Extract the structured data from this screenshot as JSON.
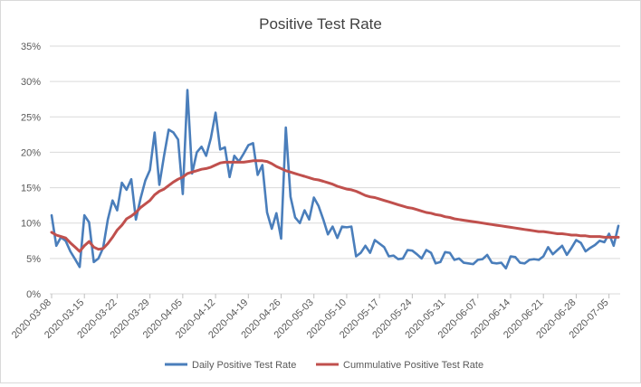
{
  "chart_data": {
    "type": "line",
    "title": "Positive Test Rate",
    "xlabel": "",
    "ylabel": "",
    "ylim": [
      0,
      0.35
    ],
    "y_ticks": [
      0,
      0.05,
      0.1,
      0.15,
      0.2,
      0.25,
      0.3,
      0.35
    ],
    "y_tick_labels": [
      "0%",
      "5%",
      "10%",
      "15%",
      "20%",
      "25%",
      "30%",
      "35%"
    ],
    "x_start": "2020-03-08",
    "x_end": "2020-07-06",
    "x_tick_labels": [
      "2020-03-08",
      "2020-03-15",
      "2020-03-22",
      "2020-03-29",
      "2020-04-05",
      "2020-04-12",
      "2020-04-19",
      "2020-04-26",
      "2020-05-03",
      "2020-05-10",
      "2020-05-17",
      "2020-05-24",
      "2020-05-31",
      "2020-06-07",
      "2020-06-14",
      "2020-06-21",
      "2020-06-28",
      "2020-07-05"
    ],
    "grid": true,
    "legend_position": "bottom",
    "series": [
      {
        "name": "Daily Positive Test Rate",
        "color": "#4a7ebb",
        "values": [
          0.111,
          0.068,
          0.08,
          0.075,
          0.06,
          0.049,
          0.038,
          0.111,
          0.101,
          0.045,
          0.05,
          0.065,
          0.105,
          0.132,
          0.118,
          0.157,
          0.147,
          0.162,
          0.105,
          0.135,
          0.16,
          0.175,
          0.228,
          0.154,
          0.195,
          0.232,
          0.228,
          0.218,
          0.141,
          0.288,
          0.17,
          0.2,
          0.208,
          0.195,
          0.22,
          0.256,
          0.204,
          0.207,
          0.165,
          0.195,
          0.187,
          0.198,
          0.21,
          0.213,
          0.168,
          0.182,
          0.115,
          0.092,
          0.114,
          0.078,
          0.235,
          0.137,
          0.108,
          0.1,
          0.118,
          0.105,
          0.136,
          0.124,
          0.105,
          0.084,
          0.095,
          0.079,
          0.095,
          0.094,
          0.095,
          0.053,
          0.058,
          0.068,
          0.058,
          0.076,
          0.071,
          0.066,
          0.053,
          0.054,
          0.049,
          0.05,
          0.062,
          0.061,
          0.056,
          0.05,
          0.062,
          0.058,
          0.043,
          0.045,
          0.059,
          0.058,
          0.048,
          0.05,
          0.044,
          0.043,
          0.042,
          0.048,
          0.049,
          0.055,
          0.044,
          0.043,
          0.044,
          0.036,
          0.053,
          0.052,
          0.044,
          0.043,
          0.048,
          0.049,
          0.048,
          0.053,
          0.066,
          0.056,
          0.062,
          0.068,
          0.055,
          0.065,
          0.076,
          0.072,
          0.06,
          0.065,
          0.069,
          0.075,
          0.073,
          0.085,
          0.068,
          0.096
        ]
      },
      {
        "name": "Cummulative Positive Test Rate",
        "color": "#c0504d",
        "values": [
          0.087,
          0.083,
          0.081,
          0.079,
          0.072,
          0.066,
          0.06,
          0.068,
          0.074,
          0.066,
          0.063,
          0.064,
          0.071,
          0.08,
          0.09,
          0.097,
          0.106,
          0.11,
          0.115,
          0.122,
          0.127,
          0.132,
          0.14,
          0.145,
          0.148,
          0.153,
          0.158,
          0.162,
          0.165,
          0.17,
          0.172,
          0.174,
          0.176,
          0.177,
          0.179,
          0.182,
          0.185,
          0.186,
          0.186,
          0.186,
          0.186,
          0.186,
          0.187,
          0.188,
          0.188,
          0.188,
          0.187,
          0.184,
          0.18,
          0.177,
          0.174,
          0.172,
          0.17,
          0.168,
          0.166,
          0.164,
          0.162,
          0.161,
          0.159,
          0.157,
          0.155,
          0.152,
          0.15,
          0.148,
          0.147,
          0.145,
          0.142,
          0.139,
          0.137,
          0.136,
          0.134,
          0.132,
          0.13,
          0.128,
          0.126,
          0.124,
          0.122,
          0.121,
          0.119,
          0.117,
          0.115,
          0.114,
          0.112,
          0.111,
          0.109,
          0.108,
          0.106,
          0.105,
          0.104,
          0.103,
          0.102,
          0.101,
          0.1,
          0.099,
          0.098,
          0.097,
          0.096,
          0.095,
          0.094,
          0.093,
          0.092,
          0.091,
          0.09,
          0.089,
          0.088,
          0.088,
          0.087,
          0.086,
          0.085,
          0.085,
          0.084,
          0.083,
          0.083,
          0.082,
          0.082,
          0.081,
          0.081,
          0.081,
          0.08,
          0.08,
          0.08,
          0.08
        ]
      }
    ]
  }
}
